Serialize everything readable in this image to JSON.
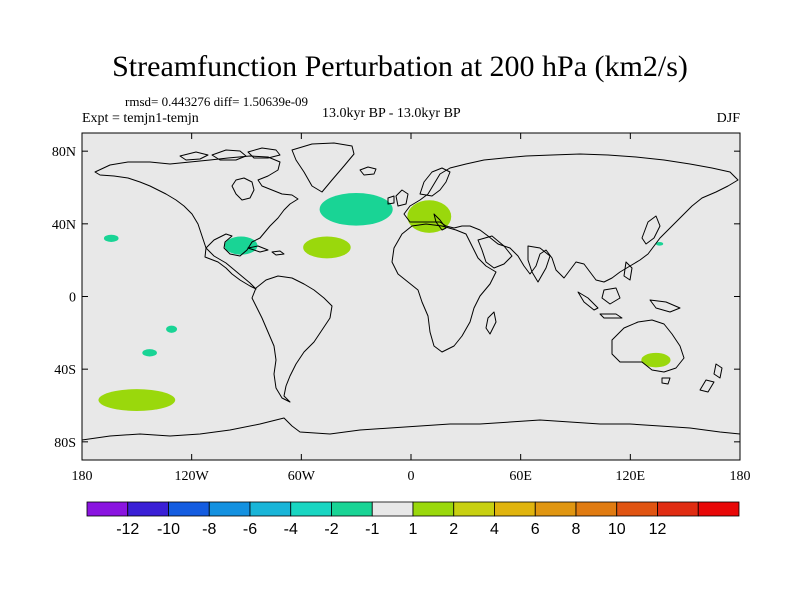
{
  "title": "Streamfunction Perturbation at 200 hPa (km2/s)",
  "stats": "rmsd= 0.443276  diff= 1.50639e-09",
  "experiment": "Expt = temjn1-temjn",
  "period": "13.0kyr BP - 13.0kyr BP",
  "season": "DJF",
  "map": {
    "projection": "cylindrical-equidistant",
    "lon_range": [
      -180,
      180
    ],
    "lat_range": [
      -90,
      90
    ],
    "background_color": "#e8e8e8",
    "coastline_color": "#000000",
    "lat_ticks": [
      {
        "value": 80,
        "label": "80N"
      },
      {
        "value": 40,
        "label": "40N"
      },
      {
        "value": 0,
        "label": "0"
      },
      {
        "value": -40,
        "label": "40S"
      },
      {
        "value": -80,
        "label": "80S"
      }
    ],
    "lon_ticks": [
      {
        "value": -180,
        "label": "180"
      },
      {
        "value": -120,
        "label": "120W"
      },
      {
        "value": -60,
        "label": "60W"
      },
      {
        "value": 0,
        "label": "0"
      },
      {
        "value": 60,
        "label": "60E"
      },
      {
        "value": 120,
        "label": "120E"
      },
      {
        "value": 180,
        "label": "180"
      }
    ],
    "anomaly_regions": [
      {
        "name": "north-atlantic-negative",
        "lon": -30,
        "lat": 48,
        "lon_radius": 20,
        "lat_radius": 9,
        "level": "-2 to -1",
        "color": "#19d495"
      },
      {
        "name": "europe-positive",
        "lon": 10,
        "lat": 44,
        "lon_radius": 12,
        "lat_radius": 9,
        "level": "1 to 2",
        "color": "#9ad80c"
      },
      {
        "name": "subtropical-atlantic-positive",
        "lon": -46,
        "lat": 27,
        "lon_radius": 13,
        "lat_radius": 6,
        "level": "1 to 2",
        "color": "#9ad80c"
      },
      {
        "name": "gulf-of-mexico-negative",
        "lon": -93,
        "lat": 28,
        "lon_radius": 9,
        "lat_radius": 5,
        "level": "-2 to -1",
        "color": "#19d495"
      },
      {
        "name": "central-pacific-negative",
        "lon": -164,
        "lat": 32,
        "lon_radius": 4,
        "lat_radius": 2,
        "level": "-2 to -1",
        "color": "#19d495"
      },
      {
        "name": "east-pacific-negative",
        "lon": -131,
        "lat": -18,
        "lon_radius": 3,
        "lat_radius": 2,
        "level": "-2 to -1",
        "color": "#19d495"
      },
      {
        "name": "southeast-pacific-negative",
        "lon": -143,
        "lat": -31,
        "lon_radius": 4,
        "lat_radius": 2,
        "level": "-2 to -1",
        "color": "#19d495"
      },
      {
        "name": "south-pacific-positive",
        "lon": -150,
        "lat": -57,
        "lon_radius": 21,
        "lat_radius": 6,
        "level": "1 to 2",
        "color": "#9ad80c"
      },
      {
        "name": "south-australia-positive",
        "lon": 134,
        "lat": -35,
        "lon_radius": 8,
        "lat_radius": 4,
        "level": "1 to 2",
        "color": "#9ad80c"
      },
      {
        "name": "japan-negative",
        "lon": 136,
        "lat": 29,
        "lon_radius": 2,
        "lat_radius": 1,
        "level": "-2 to -1",
        "color": "#19d495"
      }
    ]
  },
  "colorbar": {
    "colors": [
      "#8a14e0",
      "#3a1fd6",
      "#145ce0",
      "#1491e0",
      "#19b5d8",
      "#19d6c2",
      "#19d495",
      "#e8e8e8",
      "#9ad80c",
      "#c8d011",
      "#e0b40e",
      "#e09611",
      "#e07b11",
      "#e05412",
      "#e02c12",
      "#e80808"
    ],
    "labels": [
      "-12",
      "-10",
      "-8",
      "-6",
      "-4",
      "-2",
      "-1",
      "1",
      "2",
      "4",
      "6",
      "8",
      "10",
      "12"
    ]
  }
}
